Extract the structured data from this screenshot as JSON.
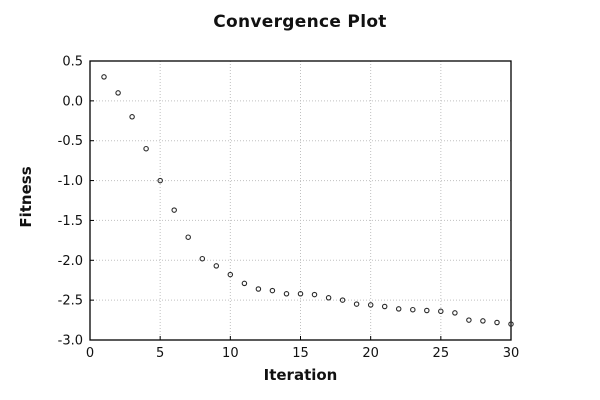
{
  "chart_data": {
    "type": "scatter",
    "title": "Convergence Plot",
    "xlabel": "Iteration",
    "ylabel": "Fitness",
    "xlim": [
      0,
      30
    ],
    "ylim": [
      -3.0,
      0.5
    ],
    "xticks": [
      0,
      5,
      10,
      15,
      20,
      25,
      30
    ],
    "yticks": [
      0.5,
      0.0,
      -0.5,
      -1.0,
      -1.5,
      -2.0,
      -2.5,
      -3.0
    ],
    "grid": "dotted",
    "legend_position": "none",
    "background_color": "#ffffff",
    "grid_color": "#c0c0c0",
    "axis_color": "#000000",
    "marker": {
      "shape": "open-circle",
      "color": "#2a2a2a",
      "radius_px": 2.2
    },
    "x": [
      1,
      2,
      3,
      4,
      5,
      6,
      7,
      8,
      9,
      10,
      11,
      12,
      13,
      14,
      15,
      16,
      17,
      18,
      19,
      20,
      21,
      22,
      23,
      24,
      25,
      26,
      27,
      28,
      29,
      30
    ],
    "y": [
      0.3,
      0.1,
      -0.2,
      -0.6,
      -1.0,
      -1.37,
      -1.71,
      -1.98,
      -2.07,
      -2.18,
      -2.29,
      -2.36,
      -2.38,
      -2.42,
      -2.42,
      -2.43,
      -2.47,
      -2.5,
      -2.55,
      -2.56,
      -2.58,
      -2.61,
      -2.62,
      -2.63,
      -2.64,
      -2.66,
      -2.75,
      -2.76,
      -2.78,
      -2.8
    ]
  }
}
